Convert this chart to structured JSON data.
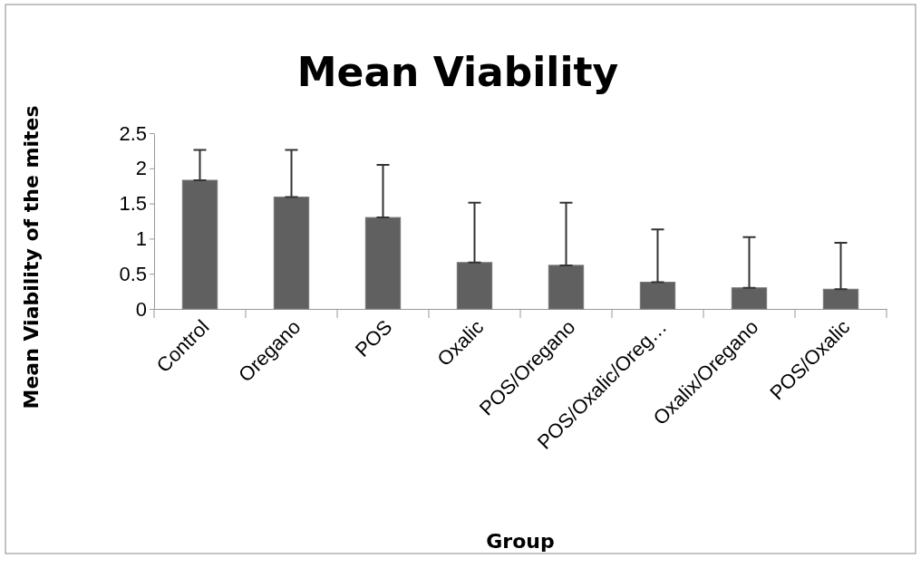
{
  "chart_data": {
    "type": "bar",
    "title": "Mean Viability",
    "xlabel": "Group",
    "ylabel": "Mean Viability of the mites",
    "categories": [
      "Control",
      "Oregano",
      "POS",
      "Oxalic",
      "POS/Oregano",
      "POS/Oxalic/Oreg…",
      "Oxalix/Oregano",
      "POS/Oxalic"
    ],
    "values": [
      1.83,
      1.59,
      1.3,
      0.66,
      0.62,
      0.38,
      0.3,
      0.28
    ],
    "errors": [
      [
        1.83,
        2.26
      ],
      [
        1.59,
        2.26
      ],
      [
        1.3,
        2.05
      ],
      [
        0.66,
        1.51
      ],
      [
        0.62,
        1.51
      ],
      [
        0.38,
        1.13
      ],
      [
        0.3,
        1.02
      ],
      [
        0.28,
        0.94
      ]
    ],
    "color": "#606060",
    "ylim": [
      0,
      2.5
    ],
    "yticks": [
      0,
      0.5,
      1,
      1.5,
      2,
      2.5
    ],
    "grid": false
  }
}
